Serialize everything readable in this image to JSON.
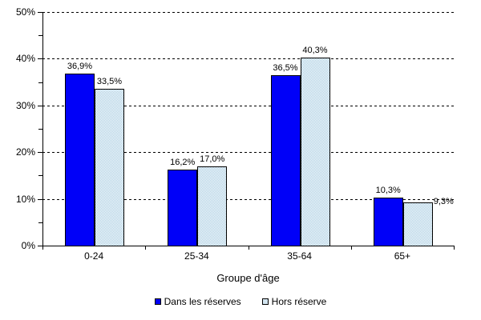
{
  "chart_data": {
    "type": "bar",
    "categories": [
      "0-24",
      "25-34",
      "35-64",
      "65+"
    ],
    "series": [
      {
        "name": "Dans les réserves",
        "values": [
          36.9,
          16.2,
          36.5,
          10.3
        ],
        "labels": [
          "36,9%",
          "16,2%",
          "36,5%",
          "10,3%"
        ],
        "label_side": [
          "top",
          "top",
          "top",
          "top"
        ]
      },
      {
        "name": "Hors réserve",
        "values": [
          33.5,
          17.0,
          40.3,
          9.3
        ],
        "labels": [
          "33,5%",
          "17,0%",
          "40,3%",
          "9,3%"
        ],
        "label_side": [
          "top",
          "top",
          "top",
          "right"
        ]
      }
    ],
    "title": "",
    "xlabel": "Groupe d'âge",
    "ylabel": "",
    "ylim": [
      0,
      50
    ],
    "ytick_step": 10,
    "ytick_minor_step": 5,
    "ytick_labels": [
      "0%",
      "10%",
      "20%",
      "30%",
      "40%",
      "50%"
    ],
    "grid": "horizontal-dashed",
    "legend_position": "bottom",
    "colors": {
      "series1_fill": "#0000F8",
      "series1_border": "#000000",
      "series2_pattern": "#A6CBE1",
      "series2_background": "#FFFFFF",
      "series2_border": "#000000",
      "grid": "#000000",
      "text": "#000000",
      "background": "#FFFFFF"
    }
  }
}
